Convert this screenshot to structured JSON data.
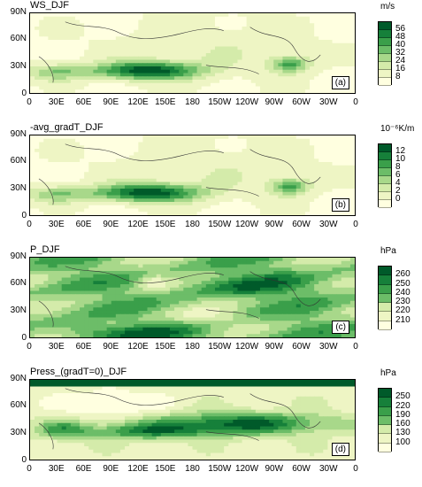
{
  "palette": [
    "#ffffe0",
    "#eef5c4",
    "#d4ebaa",
    "#a8d88a",
    "#6cbd68",
    "#3a9f4a",
    "#16803a",
    "#005a2a"
  ],
  "x_ticks": [
    "0",
    "30E",
    "60E",
    "90E",
    "120E",
    "150E",
    "180",
    "150W",
    "120W",
    "90W",
    "60W",
    "30W",
    "0"
  ],
  "y_ticks": [
    "90N",
    "60N",
    "30N",
    "0"
  ],
  "panels": [
    {
      "title": "WS_DJF",
      "label": "(a)",
      "unit": "m/s",
      "levels": [
        "56",
        "48",
        "40",
        "32",
        "24",
        "16",
        "8"
      ],
      "field": "jet"
    },
    {
      "title": "-avg_gradT_DJF",
      "label": "(b)",
      "unit": "10⁻⁶K/m",
      "levels": [
        "12",
        "10",
        "8",
        "6",
        "4",
        "2",
        "0"
      ],
      "field": "jet"
    },
    {
      "title": "P_DJF",
      "label": "(c)",
      "unit": "hPa",
      "levels": [
        "260",
        "250",
        "240",
        "230",
        "220",
        "210"
      ],
      "field": "pressure"
    },
    {
      "title": "Press_(gradT=0)_DJF",
      "label": "(d)",
      "unit": "hPa",
      "levels": [
        "250",
        "220",
        "190",
        "160",
        "130",
        "100"
      ],
      "field": "press2"
    }
  ]
}
